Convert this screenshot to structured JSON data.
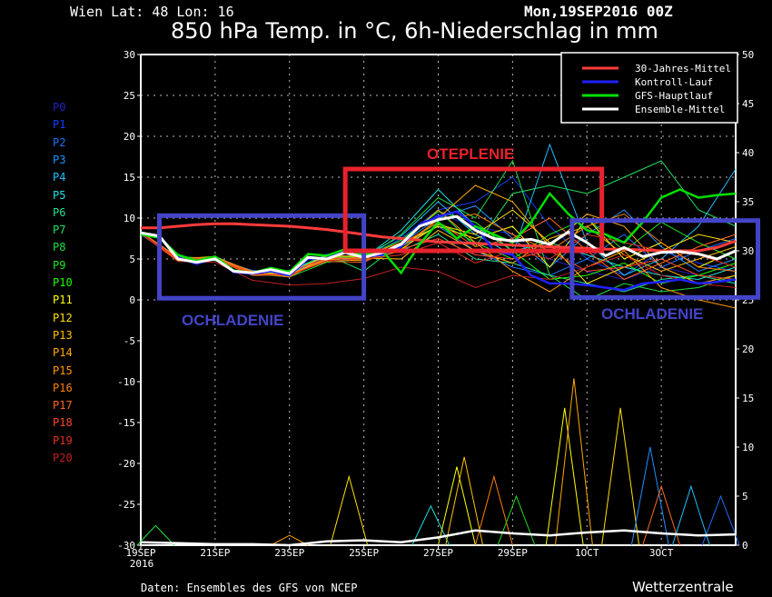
{
  "header": {
    "location": "Wien  Lat: 48 Lon: 16",
    "run": "Mon,19SEP2016 00Z",
    "title": "850 hPa Temp. in °C, 6h-Niederschlag in mm"
  },
  "footer": {
    "source": "Daten: Ensembles des GFS von NCEP",
    "brand": "Wetterzentrale"
  },
  "annotations": [
    {
      "label": "OCHLADENIE",
      "color": "#4444c8",
      "x": [
        0.5,
        6.0
      ],
      "y": [
        0.2,
        10.3
      ]
    },
    {
      "label": "OTEPLENIE",
      "color": "#e8222c",
      "x": [
        5.5,
        12.4
      ],
      "y": [
        6.0,
        16.0
      ]
    },
    {
      "label": "OCHLADENIE",
      "color": "#4444c8",
      "x": [
        11.6,
        16.6
      ],
      "y": [
        0.3,
        9.7
      ]
    }
  ],
  "chart_data": {
    "type": "line",
    "title": "850 hPa Temp. in °C, 6h-Niederschlag in mm",
    "x_ticks": [
      "19SEP\n2016",
      "21SEP",
      "23SEP",
      "25SEP",
      "27SEP",
      "29SEP",
      "1OCT",
      "3OCT"
    ],
    "x_range_days": [
      0,
      16
    ],
    "y_left": {
      "range": [
        -30,
        30
      ],
      "ticks": [
        30,
        25,
        20,
        15,
        10,
        5,
        0,
        -5,
        -10,
        -15,
        -20,
        -25,
        -30
      ]
    },
    "y_right": {
      "range": [
        0,
        50
      ],
      "ticks": [
        50,
        45,
        40,
        35,
        30,
        25,
        20,
        15,
        10,
        5,
        0
      ]
    },
    "grid": true,
    "legend": {
      "placement": "top-right",
      "entries": [
        {
          "name": "30-Jahres-Mittel",
          "color": "#ff3b3b"
        },
        {
          "name": "Kontroll-Lauf",
          "color": "#2020ff"
        },
        {
          "name": "GFS-Hauptlauf",
          "color": "#00e000"
        },
        {
          "name": "Ensemble-Mittel",
          "color": "#ffffff"
        }
      ]
    },
    "main_x_days": [
      0,
      0.5,
      1,
      1.5,
      2,
      2.5,
      3,
      3.5,
      4,
      4.5,
      5,
      5.5,
      6,
      6.5,
      7,
      7.5,
      8,
      8.5,
      9,
      9.5,
      10,
      10.5,
      11,
      11.5,
      12,
      12.5,
      13,
      13.5,
      14,
      14.5,
      15,
      15.5,
      16
    ],
    "climatology": [
      8.8,
      8.8,
      9.0,
      9.2,
      9.3,
      9.3,
      9.2,
      9.1,
      9.0,
      8.8,
      8.6,
      8.3,
      8.0,
      7.7,
      7.5,
      7.3,
      7.1,
      7.0,
      6.9,
      6.8,
      6.7,
      6.6,
      6.5,
      6.4,
      6.3,
      6.2,
      6.2,
      6.1,
      6.0,
      6.0,
      6.0,
      6.4,
      7.2
    ],
    "ensemble_mean": [
      8.2,
      7.8,
      5.0,
      4.6,
      5.0,
      3.5,
      3.3,
      3.7,
      3.2,
      5.2,
      5.0,
      5.8,
      5.2,
      5.8,
      6.8,
      9.0,
      9.8,
      10.2,
      8.5,
      7.5,
      7.2,
      7.4,
      6.8,
      8.3,
      7.0,
      5.4,
      6.4,
      5.3,
      5.8,
      5.9,
      5.6,
      5.0,
      6.0
    ],
    "control": [
      8.2,
      7.8,
      5.2,
      4.4,
      5.1,
      3.4,
      3.2,
      3.5,
      3.0,
      5.0,
      5.1,
      5.9,
      5.3,
      5.5,
      6.5,
      9.2,
      10.2,
      10.8,
      9.0,
      6.0,
      5.5,
      3.0,
      2.0,
      2.0,
      1.8,
      1.5,
      1.2,
      2.0,
      2.2,
      2.5,
      2.0,
      2.2,
      2.5
    ],
    "gfs_main": [
      8.0,
      7.6,
      5.5,
      4.8,
      5.3,
      3.6,
      3.3,
      3.9,
      3.4,
      5.6,
      5.4,
      6.2,
      5.4,
      6.0,
      3.3,
      6.8,
      9.5,
      7.5,
      9.0,
      8.0,
      7.0,
      9.5,
      13.0,
      10.5,
      8.5,
      8.0,
      7.0,
      9.5,
      12.5,
      13.5,
      12.5,
      12.8,
      13.0
    ],
    "member_x_days": [
      0,
      1,
      2,
      3,
      4,
      5,
      6,
      7,
      8,
      9,
      10,
      11,
      12,
      13,
      14,
      15,
      16
    ],
    "members": [
      {
        "name": "P0",
        "color": "#2020c0",
        "temp": [
          8.2,
          5.2,
          5.1,
          3.5,
          3.0,
          5.3,
          5.5,
          7.2,
          10.5,
          9.0,
          8.0,
          5.0,
          3.5,
          2.5,
          4.0,
          3.0,
          2.0
        ]
      },
      {
        "name": "P1",
        "color": "#1040ff",
        "temp": [
          8.1,
          4.8,
          4.9,
          3.2,
          3.4,
          5.6,
          5.0,
          7.5,
          11.0,
          12.0,
          15.0,
          9.0,
          5.0,
          3.0,
          6.0,
          4.5,
          3.5
        ]
      },
      {
        "name": "P2",
        "color": "#2070ff",
        "temp": [
          8.3,
          5.1,
          5.2,
          3.0,
          3.1,
          4.8,
          5.8,
          6.5,
          9.0,
          6.0,
          4.0,
          3.0,
          5.0,
          8.0,
          4.0,
          6.0,
          7.5
        ]
      },
      {
        "name": "P3",
        "color": "#2090ff",
        "temp": [
          8.2,
          5.0,
          5.0,
          3.6,
          3.3,
          5.1,
          4.9,
          6.9,
          10.0,
          11.5,
          7.5,
          4.0,
          8.0,
          11.0,
          6.5,
          3.5,
          5.0
        ]
      },
      {
        "name": "P4",
        "color": "#20c0ff",
        "temp": [
          8.0,
          4.9,
          5.3,
          3.4,
          2.9,
          5.2,
          5.3,
          7.8,
          12.0,
          8.0,
          5.5,
          19.0,
          7.0,
          3.0,
          5.0,
          9.0,
          16.0
        ]
      },
      {
        "name": "P5",
        "color": "#20e0e0",
        "temp": [
          8.3,
          5.2,
          5.1,
          3.1,
          3.5,
          5.4,
          5.1,
          8.5,
          13.5,
          9.0,
          6.0,
          7.0,
          5.5,
          4.0,
          3.0,
          2.5,
          4.0
        ]
      },
      {
        "name": "P6",
        "color": "#20e090",
        "temp": [
          8.2,
          5.0,
          4.8,
          3.3,
          3.2,
          4.9,
          5.4,
          6.0,
          8.0,
          5.0,
          4.5,
          3.0,
          2.0,
          1.0,
          2.5,
          3.0,
          2.0
        ]
      },
      {
        "name": "P7",
        "color": "#20e060",
        "temp": [
          8.1,
          5.3,
          5.0,
          3.4,
          3.6,
          5.5,
          3.5,
          7.0,
          11.0,
          6.5,
          13.0,
          14.0,
          13.0,
          15.0,
          17.0,
          11.0,
          9.0
        ]
      },
      {
        "name": "P8",
        "color": "#20e040",
        "temp": [
          8.2,
          4.7,
          5.2,
          3.2,
          2.8,
          4.6,
          5.0,
          8.0,
          12.5,
          10.0,
          17.0,
          3.0,
          0.0,
          2.0,
          1.0,
          1.5,
          3.0
        ]
      },
      {
        "name": "P9",
        "color": "#20e020",
        "temp": [
          8.3,
          5.0,
          5.1,
          3.5,
          3.0,
          5.0,
          5.6,
          6.5,
          9.5,
          7.0,
          5.0,
          8.0,
          10.0,
          6.0,
          9.5,
          7.0,
          5.0
        ]
      },
      {
        "name": "P10",
        "color": "#20ff00",
        "temp": [
          8.2,
          5.1,
          4.9,
          3.3,
          3.4,
          5.3,
          5.2,
          7.3,
          10.8,
          9.5,
          6.0,
          2.5,
          3.0,
          4.5,
          2.0,
          3.0,
          4.5
        ]
      },
      {
        "name": "P11",
        "color": "#ffff00",
        "temp": [
          8.2,
          4.9,
          5.0,
          3.0,
          3.1,
          5.1,
          5.0,
          6.8,
          9.0,
          7.5,
          9.0,
          4.0,
          10.0,
          5.0,
          7.0,
          4.0,
          6.0
        ]
      },
      {
        "name": "P12",
        "color": "#ffe000",
        "temp": [
          8.1,
          5.0,
          5.3,
          3.2,
          3.3,
          5.4,
          5.3,
          6.2,
          9.2,
          8.0,
          11.0,
          7.0,
          2.0,
          4.0,
          6.0,
          8.0,
          7.0
        ]
      },
      {
        "name": "P13",
        "color": "#ffc000",
        "temp": [
          8.3,
          5.2,
          5.0,
          3.4,
          3.0,
          5.0,
          5.1,
          5.0,
          8.5,
          6.0,
          4.5,
          7.5,
          9.0,
          5.5,
          3.5,
          5.0,
          6.5
        ]
      },
      {
        "name": "P14",
        "color": "#ffa800",
        "temp": [
          8.2,
          4.8,
          5.1,
          3.1,
          3.2,
          4.9,
          4.8,
          6.0,
          10.0,
          14.0,
          12.0,
          6.5,
          10.5,
          9.0,
          4.0,
          2.0,
          3.0
        ]
      },
      {
        "name": "P15",
        "color": "#ff9800",
        "temp": [
          8.2,
          5.1,
          5.2,
          3.5,
          3.4,
          5.3,
          5.4,
          7.0,
          11.0,
          7.0,
          3.5,
          1.0,
          4.0,
          6.0,
          1.5,
          0.0,
          -1.0
        ]
      },
      {
        "name": "P16",
        "color": "#ff8000",
        "temp": [
          8.1,
          5.0,
          4.9,
          3.3,
          2.8,
          5.2,
          5.0,
          6.5,
          9.8,
          10.5,
          8.0,
          6.0,
          9.0,
          10.5,
          7.0,
          4.0,
          3.5
        ]
      },
      {
        "name": "P17",
        "color": "#ff6820",
        "temp": [
          8.2,
          5.2,
          5.0,
          3.0,
          3.1,
          4.7,
          4.6,
          6.8,
          9.5,
          6.5,
          7.5,
          10.0,
          6.0,
          2.5,
          4.5,
          6.5,
          8.0
        ]
      },
      {
        "name": "P18",
        "color": "#ff4830",
        "temp": [
          8.3,
          4.9,
          5.1,
          3.4,
          3.5,
          5.0,
          5.2,
          6.2,
          7.5,
          5.5,
          5.0,
          6.0,
          3.5,
          4.0,
          5.0,
          3.0,
          2.5
        ]
      },
      {
        "name": "P19",
        "color": "#e03020",
        "temp": [
          8.2,
          5.0,
          4.9,
          3.2,
          3.0,
          4.8,
          5.0,
          5.5,
          7.0,
          4.5,
          6.0,
          5.0,
          8.0,
          7.0,
          6.0,
          5.5,
          4.0
        ]
      },
      {
        "name": "P20",
        "color": "#c02020",
        "temp": [
          8.1,
          4.7,
          4.6,
          2.4,
          1.8,
          2.0,
          2.6,
          4.0,
          3.5,
          1.5,
          3.0,
          2.5,
          4.0,
          5.5,
          3.0,
          2.0,
          1.5
        ]
      }
    ],
    "precip_mean": [
      0.3,
      0.2,
      0.1,
      0.1,
      0.0,
      0.4,
      0.5,
      0.3,
      0.8,
      1.5,
      1.2,
      1.0,
      1.3,
      1.5,
      1.2,
      1.0,
      1.1
    ],
    "precip_events": [
      {
        "member": "P8",
        "day": 0.4,
        "mm": 2
      },
      {
        "member": "P15",
        "day": 4.0,
        "mm": 1
      },
      {
        "member": "P12",
        "day": 5.6,
        "mm": 7
      },
      {
        "member": "P5",
        "day": 7.8,
        "mm": 4
      },
      {
        "member": "P11",
        "day": 8.5,
        "mm": 8
      },
      {
        "member": "P13",
        "day": 8.7,
        "mm": 9
      },
      {
        "member": "P16",
        "day": 9.5,
        "mm": 7
      },
      {
        "member": "P9",
        "day": 10.1,
        "mm": 5
      },
      {
        "member": "P11",
        "day": 11.4,
        "mm": 14
      },
      {
        "member": "P14",
        "day": 11.65,
        "mm": 17
      },
      {
        "member": "P12",
        "day": 12.9,
        "mm": 14
      },
      {
        "member": "P3",
        "day": 13.7,
        "mm": 10
      },
      {
        "member": "P17",
        "day": 14.0,
        "mm": 6
      },
      {
        "member": "P4",
        "day": 14.8,
        "mm": 6
      },
      {
        "member": "P2",
        "day": 15.6,
        "mm": 5
      }
    ]
  }
}
